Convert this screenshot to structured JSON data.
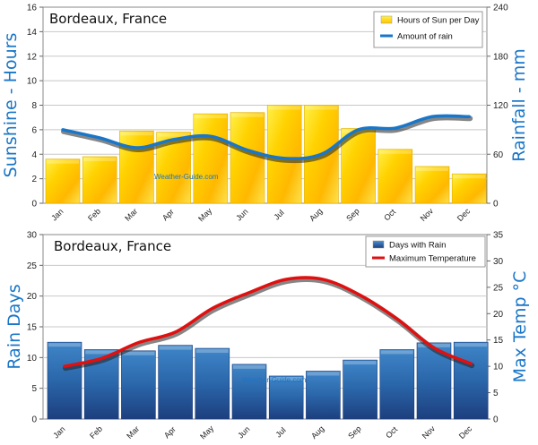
{
  "chart_data": [
    {
      "type": "bar",
      "title": "Bordeaux, France",
      "ylabel": "Sunshine - Hours",
      "y2label": "Rainfall - mm",
      "ylim": [
        0,
        16
      ],
      "y2lim": [
        0,
        240
      ],
      "yticks": [
        0,
        2,
        4,
        6,
        8,
        10,
        12,
        14,
        16
      ],
      "y2ticks": [
        0,
        60,
        120,
        180,
        240
      ],
      "categories": [
        "Jan",
        "Feb",
        "Mar",
        "Apr",
        "May",
        "Jun",
        "Jul",
        "Aug",
        "Sep",
        "Oct",
        "Nov",
        "Dec"
      ],
      "series": [
        {
          "name": "Hours of Sun per Day",
          "kind": "bar",
          "axis": "left",
          "color": "#ffd700",
          "values": [
            3.6,
            3.8,
            5.9,
            5.8,
            7.3,
            7.4,
            8.0,
            8.0,
            6.1,
            4.4,
            3.0,
            2.4
          ]
        },
        {
          "name": "Amount of rain",
          "kind": "line",
          "axis": "right",
          "color": "#1976c8",
          "values": [
            90,
            80,
            68,
            78,
            82,
            65,
            55,
            60,
            90,
            92,
            106,
            106
          ]
        }
      ],
      "watermark": "Weather-Guide.com",
      "legend": "top-right",
      "grid": true
    },
    {
      "type": "bar",
      "title": "Bordeaux, France",
      "ylabel": "Rain Days",
      "y2label": "Max Temp °C",
      "ylim": [
        0,
        30
      ],
      "y2lim": [
        0,
        35
      ],
      "yticks": [
        0,
        5,
        10,
        15,
        20,
        25,
        30
      ],
      "y2ticks": [
        0,
        5,
        10,
        15,
        20,
        25,
        30,
        35
      ],
      "categories": [
        "Jan",
        "Feb",
        "Mar",
        "Apr",
        "May",
        "Jun",
        "Jul",
        "Aug",
        "Sep",
        "Oct",
        "Nov",
        "Dec"
      ],
      "series": [
        {
          "name": "Days with Rain",
          "kind": "bar",
          "axis": "left",
          "color": "#2a6fb5",
          "values": [
            12.5,
            11.3,
            11.1,
            12.0,
            11.5,
            8.9,
            7.0,
            7.8,
            9.6,
            11.3,
            12.4,
            12.5
          ]
        },
        {
          "name": "Maximum Temperature",
          "kind": "line",
          "axis": "right",
          "color": "#e01010",
          "values": [
            10,
            11.5,
            14.5,
            16.5,
            21,
            24,
            26.5,
            26.5,
            23.5,
            19,
            13.5,
            10.5
          ]
        }
      ],
      "watermark": "Weather-Guide.com",
      "legend": "top-right",
      "grid": true
    }
  ]
}
